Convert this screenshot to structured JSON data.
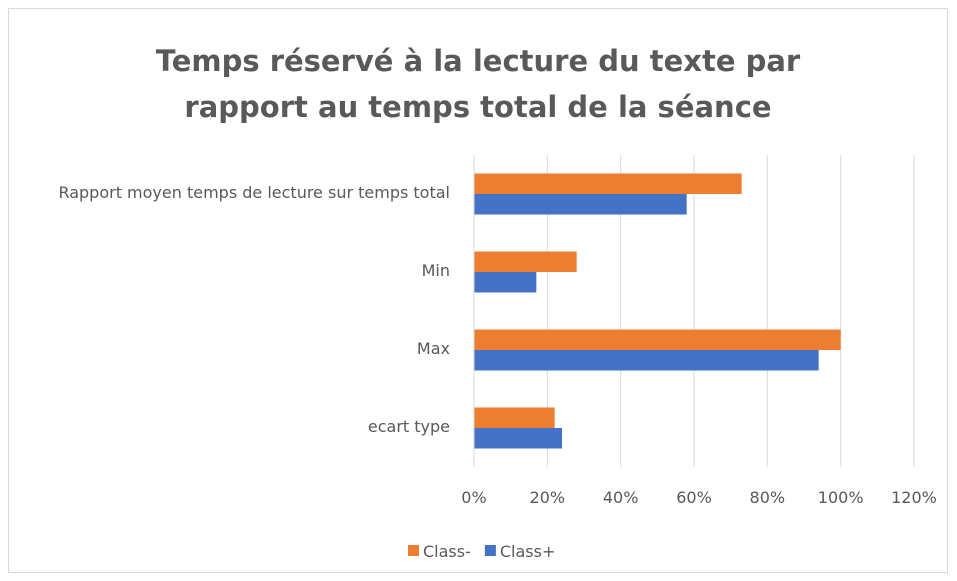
{
  "chart_data": {
    "type": "bar",
    "orientation": "horizontal",
    "title": "Temps réservé à la lecture du texte par rapport au temps total de la séance",
    "categories": [
      "Rapport moyen temps de lecture sur temps total",
      "Min",
      "Max",
      "ecart type"
    ],
    "series": [
      {
        "name": "Class-",
        "color": "#ed7d31",
        "values": [
          73,
          28,
          100,
          22
        ]
      },
      {
        "name": "Class+",
        "color": "#4472c4",
        "values": [
          58,
          17,
          94,
          24
        ]
      }
    ],
    "xlim": [
      0,
      120
    ],
    "xticks": [
      {
        "value": 0,
        "label": "0%"
      },
      {
        "value": 20,
        "label": "20%"
      },
      {
        "value": 40,
        "label": "40%"
      },
      {
        "value": 60,
        "label": "60%"
      },
      {
        "value": 80,
        "label": "80%"
      },
      {
        "value": 100,
        "label": "100%"
      },
      {
        "value": 120,
        "label": "120%"
      }
    ],
    "grid": true,
    "legend": "bottom"
  }
}
